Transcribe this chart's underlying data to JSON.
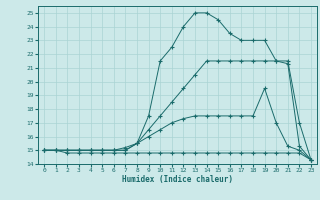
{
  "xlabel": "Humidex (Indice chaleur)",
  "ylabel": "",
  "xlim": [
    -0.5,
    23.5
  ],
  "ylim": [
    14,
    25.5
  ],
  "xticks": [
    0,
    1,
    2,
    3,
    4,
    5,
    6,
    7,
    8,
    9,
    10,
    11,
    12,
    13,
    14,
    15,
    16,
    17,
    18,
    19,
    20,
    21,
    22,
    23
  ],
  "yticks": [
    14,
    15,
    16,
    17,
    18,
    19,
    20,
    21,
    22,
    23,
    24,
    25
  ],
  "background_color": "#cce9e9",
  "grid_color": "#aad4d4",
  "line_color": "#1a6b6b",
  "line1_x": [
    0,
    1,
    2,
    3,
    4,
    5,
    6,
    7,
    8,
    9,
    10,
    11,
    12,
    13,
    14,
    15,
    16,
    17,
    18,
    19,
    20,
    21,
    22,
    23
  ],
  "line1_y": [
    15.0,
    15.0,
    14.8,
    14.8,
    14.8,
    14.8,
    14.8,
    14.8,
    14.8,
    14.8,
    14.8,
    14.8,
    14.8,
    14.8,
    14.8,
    14.8,
    14.8,
    14.8,
    14.8,
    14.8,
    14.8,
    14.8,
    14.8,
    14.3
  ],
  "line2_x": [
    0,
    1,
    2,
    3,
    4,
    5,
    6,
    7,
    8,
    9,
    10,
    11,
    12,
    13,
    14,
    15,
    16,
    17,
    18,
    19,
    20,
    21,
    22,
    23
  ],
  "line2_y": [
    15.0,
    15.0,
    15.0,
    15.0,
    15.0,
    15.0,
    15.0,
    15.2,
    15.5,
    16.0,
    16.5,
    17.0,
    17.3,
    17.5,
    17.5,
    17.5,
    17.5,
    17.5,
    17.5,
    19.5,
    17.0,
    15.3,
    15.0,
    14.3
  ],
  "line3_x": [
    0,
    1,
    2,
    3,
    4,
    5,
    6,
    7,
    8,
    9,
    10,
    11,
    12,
    13,
    14,
    15,
    16,
    17,
    18,
    19,
    20,
    21,
    22,
    23
  ],
  "line3_y": [
    15.0,
    15.0,
    15.0,
    15.0,
    15.0,
    15.0,
    15.0,
    15.0,
    15.5,
    16.5,
    17.5,
    18.5,
    19.5,
    20.5,
    21.5,
    21.5,
    21.5,
    21.5,
    21.5,
    21.5,
    21.5,
    21.3,
    15.3,
    14.3
  ],
  "line4_x": [
    0,
    1,
    2,
    3,
    4,
    5,
    6,
    7,
    8,
    9,
    10,
    11,
    12,
    13,
    14,
    15,
    16,
    17,
    18,
    19,
    20,
    21,
    22,
    23
  ],
  "line4_y": [
    15.0,
    15.0,
    15.0,
    15.0,
    15.0,
    15.0,
    15.0,
    15.0,
    15.5,
    17.5,
    21.5,
    22.5,
    24.0,
    25.0,
    25.0,
    24.5,
    23.5,
    23.0,
    23.0,
    23.0,
    21.5,
    21.5,
    17.0,
    14.3
  ]
}
